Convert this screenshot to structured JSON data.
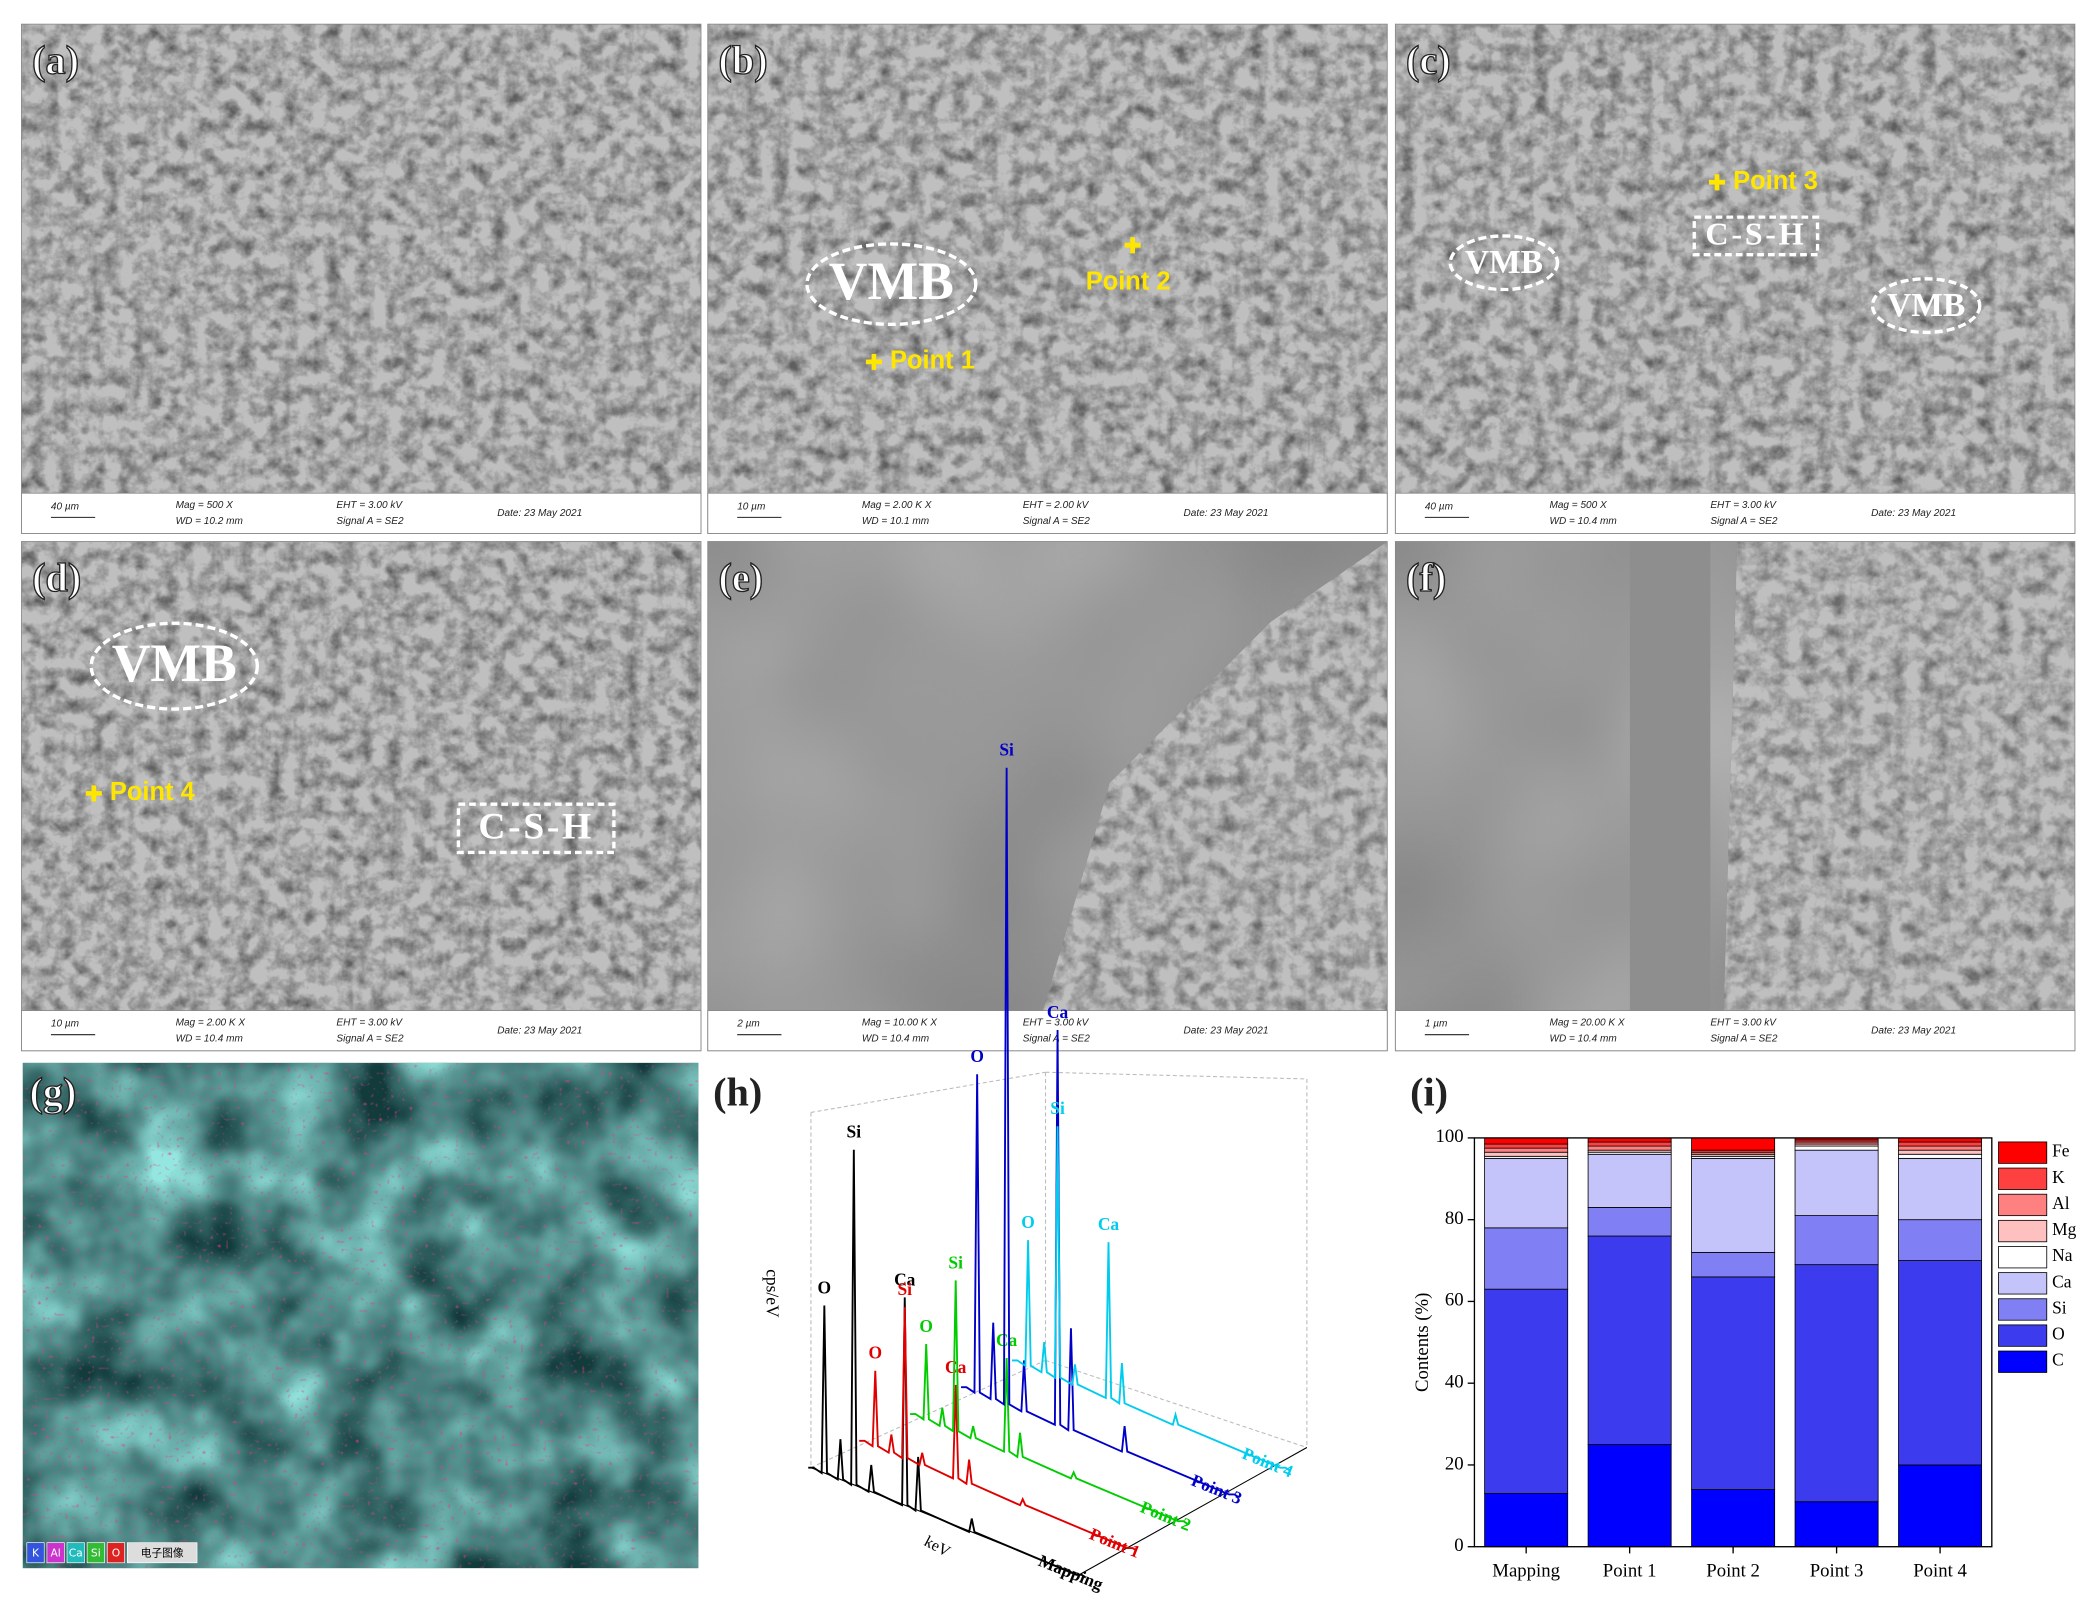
{
  "panels": [
    {
      "label": "(a)",
      "info": {
        "scale": "40 µm",
        "mag": "Mag =  500 X",
        "wd": "WD = 10.2 mm",
        "eht": "EHT = 3.00 kV",
        "signal": "Signal A = SE2",
        "date": "Date: 23 May 2021"
      },
      "annotations": []
    },
    {
      "label": "(b)",
      "info": {
        "scale": "10 µm",
        "mag": "Mag =  2.00 K X",
        "wd": "WD = 10.1 mm",
        "eht": "EHT = 2.00 kV",
        "signal": "Signal A = SE2",
        "date": "Date: 23 May 2021"
      },
      "annotations": [
        {
          "text": "VMB",
          "style": "ellipse"
        },
        {
          "text": "Point 1",
          "style": "point"
        },
        {
          "text": "Point 2",
          "style": "point"
        }
      ]
    },
    {
      "label": "(c)",
      "info": {
        "scale": "40 µm",
        "mag": "Mag =  500 X",
        "wd": "WD = 10.4 mm",
        "eht": "EHT = 3.00 kV",
        "signal": "Signal A = SE2",
        "date": "Date: 23 May 2021"
      },
      "annotations": [
        {
          "text": "Point 3",
          "style": "point"
        },
        {
          "text": "C-S-H",
          "style": "box"
        },
        {
          "text": "VMB",
          "style": "ellipse"
        },
        {
          "text": "VMB",
          "style": "ellipse"
        }
      ]
    },
    {
      "label": "(d)",
      "info": {
        "scale": "10 µm",
        "mag": "Mag =  2.00 K X",
        "wd": "WD = 10.4 mm",
        "eht": "EHT = 3.00 kV",
        "signal": "Signal A = SE2",
        "date": "Date: 23 May 2021"
      },
      "annotations": [
        {
          "text": "VMB",
          "style": "ellipse"
        },
        {
          "text": "Point 4",
          "style": "point"
        },
        {
          "text": "C-S-H",
          "style": "box"
        }
      ]
    },
    {
      "label": "(e)",
      "info": {
        "scale": "2 µm",
        "mag": "Mag =  10.00 K X",
        "wd": "WD = 10.4 mm",
        "eht": "EHT = 3.00 kV",
        "signal": "Signal A = SE2",
        "date": "Date: 23 May 2021"
      },
      "annotations": []
    },
    {
      "label": "(f)",
      "info": {
        "scale": "1 µm",
        "mag": "Mag =  20.00 K X",
        "wd": "WD = 10.4 mm",
        "eht": "EHT = 3.00 kV",
        "signal": "Signal A = SE2",
        "date": "Date: 23 May 2021"
      },
      "annotations": []
    }
  ],
  "mapping": {
    "label": "(g)",
    "legend": [
      "K",
      "Al",
      "Ca",
      "Si",
      "O",
      "电子图像"
    ]
  },
  "spectra": {
    "label": "(h)",
    "y_label": "cps/eV",
    "x_label": "keV",
    "series": [
      {
        "name": "Mapping",
        "color": "#000000",
        "peaks": [
          "O",
          "Si",
          "Ca"
        ]
      },
      {
        "name": "Point 1",
        "color": "#e00000",
        "peaks": [
          "O",
          "Si",
          "Ca"
        ]
      },
      {
        "name": "Point 2",
        "color": "#00cc00",
        "peaks": [
          "O",
          "Si",
          "Ca"
        ]
      },
      {
        "name": "Point 3",
        "color": "#0000c8",
        "peaks": [
          "O",
          "Si",
          "Ca"
        ]
      },
      {
        "name": "Point 4",
        "color": "#00ccee",
        "peaks": [
          "O",
          "Si",
          "Ca"
        ]
      }
    ]
  },
  "chart_data": {
    "type": "stacked-bar",
    "label": "(i)",
    "y_label": "Contents (%)",
    "categories": [
      "Mapping",
      "Point 1",
      "Point 2",
      "Point 3",
      "Point 4"
    ],
    "ylim": [
      0,
      100
    ],
    "yticks": [
      0,
      20,
      40,
      60,
      80,
      100
    ],
    "series": [
      {
        "name": "C",
        "color": "#0000ff",
        "values": [
          13,
          25,
          14,
          11,
          20
        ]
      },
      {
        "name": "O",
        "color": "#3c3cee",
        "values": [
          50,
          51,
          52,
          58,
          50
        ]
      },
      {
        "name": "Si",
        "color": "#8080f4",
        "values": [
          15,
          7,
          6,
          12,
          10
        ]
      },
      {
        "name": "Ca",
        "color": "#c4c4fa",
        "values": [
          17,
          13,
          23,
          16,
          15
        ]
      },
      {
        "name": "Na",
        "color": "#ffffff",
        "values": [
          0.5,
          0.5,
          0.5,
          1,
          1
        ]
      },
      {
        "name": "Mg",
        "color": "#ffc0c0",
        "values": [
          1,
          0.5,
          0.5,
          0.5,
          1
        ]
      },
      {
        "name": "Al",
        "color": "#ff8080",
        "values": [
          1,
          1,
          0.5,
          0.5,
          1
        ]
      },
      {
        "name": "K",
        "color": "#ff4040",
        "values": [
          1,
          1,
          0.5,
          0.5,
          1
        ]
      },
      {
        "name": "Fe",
        "color": "#ff0000",
        "values": [
          1.5,
          1,
          3,
          0.5,
          1
        ]
      }
    ]
  }
}
